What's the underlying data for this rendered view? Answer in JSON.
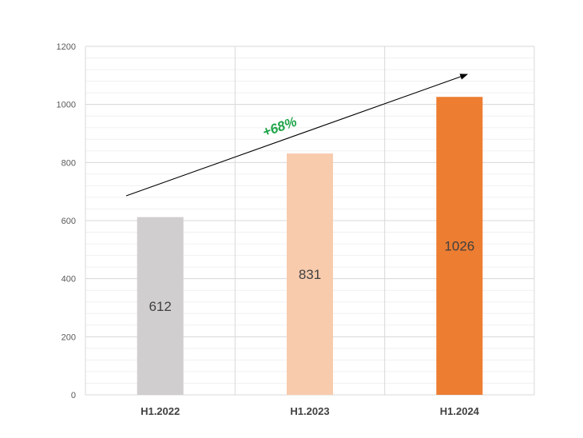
{
  "chart_data": {
    "type": "bar",
    "categories": [
      "H1.2022",
      "H1.2023",
      "H1.2024"
    ],
    "values": [
      612,
      831,
      1026
    ],
    "ylim": [
      0,
      1200
    ],
    "yticks": [
      0,
      200,
      400,
      600,
      800,
      1000,
      1200
    ],
    "minor_step": 40,
    "grid": true,
    "bar_colors": [
      "#d0cece",
      "#f8cbad",
      "#ed7d31"
    ],
    "annotation": {
      "text": "+68%",
      "color": "#1fa54a"
    }
  }
}
